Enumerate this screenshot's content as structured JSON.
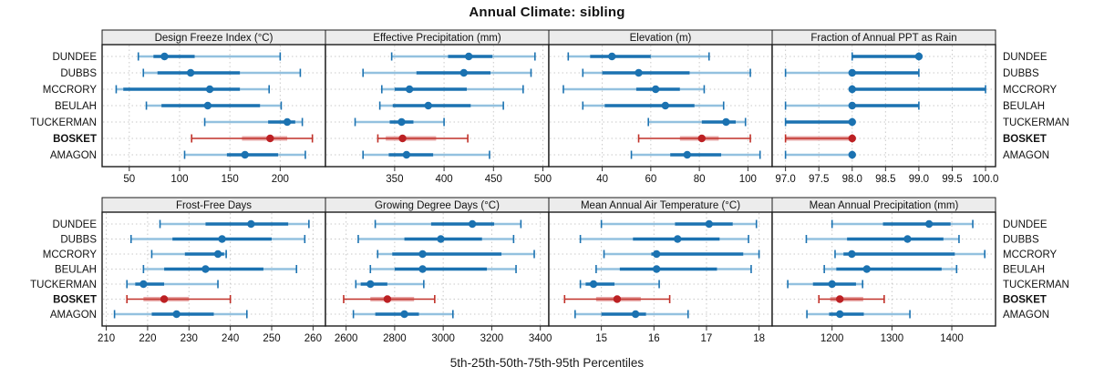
{
  "title": "Annual Climate: sibling",
  "footer": "5th-25th-50th-75th-95th Percentiles",
  "sites": [
    "DUNDEE",
    "DUBBS",
    "MCCRORY",
    "BEULAH",
    "TUCKERMAN",
    "BOSKET",
    "AMAGON"
  ],
  "highlight_site": "BOSKET",
  "colors": {
    "blue": "#1b72b1",
    "blue_light": "#93c1df",
    "red": "#c03028",
    "red_light": "#e8a9a9",
    "red_dot": "#bc2023",
    "strip_bg": "#ececec",
    "panel_border": "#1c1c1c",
    "grid": "#c9c9c9",
    "text": "#111111"
  },
  "chart_data": {
    "type": "multi-panel-percentile-dotplot",
    "percentiles": [
      5,
      25,
      50,
      75,
      95
    ],
    "panels": [
      {
        "title": "Design Freeze Index (°C)",
        "xlim": [
          23,
          245
        ],
        "ticks": [
          50,
          100,
          150,
          200
        ],
        "tick_labels": [
          "50",
          "100",
          "150",
          "200"
        ],
        "series": [
          {
            "site": "DUNDEE",
            "values": [
              59,
              74,
              85,
              115,
              200
            ]
          },
          {
            "site": "DUBBS",
            "values": [
              64,
              78,
              111,
              160,
              220
            ]
          },
          {
            "site": "MCCRORY",
            "values": [
              37,
              44,
              130,
              160,
              189
            ]
          },
          {
            "site": "BEULAH",
            "values": [
              67,
              82,
              128,
              180,
              201
            ]
          },
          {
            "site": "TUCKERMAN",
            "values": [
              125,
              188,
              207,
              215,
              222
            ]
          },
          {
            "site": "BOSKET",
            "values": [
              112,
              162,
              190,
              207,
              232
            ]
          },
          {
            "site": "AMAGON",
            "values": [
              105,
              147,
              165,
              198,
              225
            ]
          }
        ]
      },
      {
        "title": "Effective Precipitation (mm)",
        "xlim": [
          280,
          506
        ],
        "ticks": [
          350,
          400,
          450,
          500
        ],
        "tick_labels": [
          "350",
          "400",
          "450",
          "500"
        ],
        "series": [
          {
            "site": "DUNDEE",
            "values": [
              347,
              404,
              425,
              449,
              492
            ]
          },
          {
            "site": "DUBBS",
            "values": [
              318,
              372,
              420,
              447,
              488
            ]
          },
          {
            "site": "MCCRORY",
            "values": [
              337,
              350,
              365,
              423,
              480
            ]
          },
          {
            "site": "BEULAH",
            "values": [
              335,
              348,
              384,
              427,
              460
            ]
          },
          {
            "site": "TUCKERMAN",
            "values": [
              310,
              345,
              357,
              369,
              400
            ]
          },
          {
            "site": "BOSKET",
            "values": [
              333,
              341,
              358,
              392,
              424
            ]
          },
          {
            "site": "AMAGON",
            "values": [
              318,
              344,
              362,
              389,
              446
            ]
          }
        ]
      },
      {
        "title": "Elevation (m)",
        "xlim": [
          18,
          110
        ],
        "ticks": [
          40,
          60,
          80,
          100
        ],
        "tick_labels": [
          "40",
          "60",
          "80",
          "100"
        ],
        "series": [
          {
            "site": "DUNDEE",
            "values": [
              26,
              35,
              44,
              60,
              84
            ]
          },
          {
            "site": "DUBBS",
            "values": [
              32,
              40,
              55,
              76,
              101
            ]
          },
          {
            "site": "MCCRORY",
            "values": [
              24,
              54,
              62,
              72,
              82
            ]
          },
          {
            "site": "BEULAH",
            "values": [
              32,
              41,
              66,
              78,
              90
            ]
          },
          {
            "site": "TUCKERMAN",
            "values": [
              59,
              81,
              91,
              95,
              99
            ]
          },
          {
            "site": "BOSKET",
            "values": [
              55,
              72,
              81,
              88,
              101
            ]
          },
          {
            "site": "AMAGON",
            "values": [
              52,
              68,
              75,
              89,
              105
            ]
          }
        ]
      },
      {
        "title": "Fraction of Annual PPT as Rain",
        "xlim": [
          96.8,
          100.15
        ],
        "ticks": [
          97.0,
          97.5,
          98.0,
          98.5,
          99.0,
          99.5,
          100.0
        ],
        "tick_labels": [
          "97.0",
          "97.5",
          "98.0",
          "98.5",
          "99.0",
          "99.5",
          "100.0"
        ],
        "series": [
          {
            "site": "DUNDEE",
            "values": [
              98,
              98,
              99,
              99,
              99
            ]
          },
          {
            "site": "DUBBS",
            "values": [
              97,
              98,
              98,
              99,
              99
            ]
          },
          {
            "site": "MCCRORY",
            "values": [
              98,
              98,
              98,
              100,
              100
            ]
          },
          {
            "site": "BEULAH",
            "values": [
              97,
              98,
              98,
              99,
              99
            ]
          },
          {
            "site": "TUCKERMAN",
            "values": [
              97,
              97,
              98,
              98,
              98
            ]
          },
          {
            "site": "BOSKET",
            "values": [
              97,
              97,
              98,
              98,
              98
            ]
          },
          {
            "site": "AMAGON",
            "values": [
              97,
              98,
              98,
              98,
              98
            ]
          }
        ]
      },
      {
        "title": "Frost-Free Days",
        "xlim": [
          209,
          263
        ],
        "ticks": [
          210,
          220,
          230,
          240,
          250,
          260
        ],
        "tick_labels": [
          "210",
          "220",
          "230",
          "240",
          "250",
          "260"
        ],
        "series": [
          {
            "site": "DUNDEE",
            "values": [
              223,
              234,
              245,
              254,
              259
            ]
          },
          {
            "site": "DUBBS",
            "values": [
              216,
              226,
              238,
              250,
              258
            ]
          },
          {
            "site": "MCCRORY",
            "values": [
              221,
              229,
              237,
              238.5,
              239
            ]
          },
          {
            "site": "BEULAH",
            "values": [
              219,
              224,
              234,
              248,
              256
            ]
          },
          {
            "site": "TUCKERMAN",
            "values": [
              215,
              217,
              219,
              224,
              237
            ]
          },
          {
            "site": "BOSKET",
            "values": [
              215,
              219,
              224,
              230,
              240
            ]
          },
          {
            "site": "AMAGON",
            "values": [
              212,
              221,
              227,
              236,
              244
            ]
          }
        ]
      },
      {
        "title": "Growing Degree Days (°C)",
        "xlim": [
          2515,
          3435
        ],
        "ticks": [
          2600,
          2800,
          3000,
          3200,
          3400
        ],
        "tick_labels": [
          "2600",
          "2800",
          "3000",
          "3200",
          "3400"
        ],
        "series": [
          {
            "site": "DUNDEE",
            "values": [
              2720,
              2950,
              3120,
              3210,
              3320
            ]
          },
          {
            "site": "DUBBS",
            "values": [
              2650,
              2840,
              2990,
              3160,
              3290
            ]
          },
          {
            "site": "MCCRORY",
            "values": [
              2730,
              2790,
              2915,
              3240,
              3375
            ]
          },
          {
            "site": "BEULAH",
            "values": [
              2700,
              2800,
              2915,
              3180,
              3300
            ]
          },
          {
            "site": "TUCKERMAN",
            "values": [
              2640,
              2660,
              2700,
              2770,
              2920
            ]
          },
          {
            "site": "BOSKET",
            "values": [
              2590,
              2700,
              2770,
              2880,
              2965
            ]
          },
          {
            "site": "AMAGON",
            "values": [
              2630,
              2720,
              2840,
              2900,
              3040
            ]
          }
        ]
      },
      {
        "title": "Mean Annual Air Temperature (°C)",
        "xlim": [
          14.0,
          18.25
        ],
        "ticks": [
          15,
          16,
          17,
          18
        ],
        "tick_labels": [
          "15",
          "16",
          "17",
          "18"
        ],
        "series": [
          {
            "site": "DUNDEE",
            "values": [
              15.0,
              16.4,
              17.05,
              17.5,
              17.95
            ]
          },
          {
            "site": "DUBBS",
            "values": [
              14.6,
              15.6,
              16.45,
              17.25,
              17.8
            ]
          },
          {
            "site": "MCCRORY",
            "values": [
              15.05,
              15.95,
              16.05,
              17.7,
              18.0
            ]
          },
          {
            "site": "BEULAH",
            "values": [
              14.9,
              15.35,
              16.05,
              17.2,
              17.85
            ]
          },
          {
            "site": "TUCKERMAN",
            "values": [
              14.6,
              14.7,
              14.85,
              15.25,
              16.1
            ]
          },
          {
            "site": "BOSKET",
            "values": [
              14.3,
              14.9,
              15.3,
              15.75,
              16.3
            ]
          },
          {
            "site": "AMAGON",
            "values": [
              14.5,
              15.0,
              15.65,
              15.85,
              16.65
            ]
          }
        ]
      },
      {
        "title": "Mean Annual Precipitation (mm)",
        "xlim": [
          1100,
          1473
        ],
        "ticks": [
          1200,
          1300,
          1400
        ],
        "tick_labels": [
          "1200",
          "1300",
          "1400"
        ],
        "series": [
          {
            "site": "DUNDEE",
            "values": [
              1200,
              1285,
              1362,
              1398,
              1435
            ]
          },
          {
            "site": "DUBBS",
            "values": [
              1157,
              1225,
              1326,
              1386,
              1412
            ]
          },
          {
            "site": "MCCRORY",
            "values": [
              1205,
              1219,
              1233,
              1405,
              1455
            ]
          },
          {
            "site": "BEULAH",
            "values": [
              1187,
              1207,
              1258,
              1383,
              1408
            ]
          },
          {
            "site": "TUCKERMAN",
            "values": [
              1126,
              1168,
              1200,
              1240,
              1251
            ]
          },
          {
            "site": "BOSKET",
            "values": [
              1178,
              1197,
              1213,
              1252,
              1287
            ]
          },
          {
            "site": "AMAGON",
            "values": [
              1158,
              1195,
              1213,
              1253,
              1330
            ]
          }
        ]
      }
    ]
  }
}
